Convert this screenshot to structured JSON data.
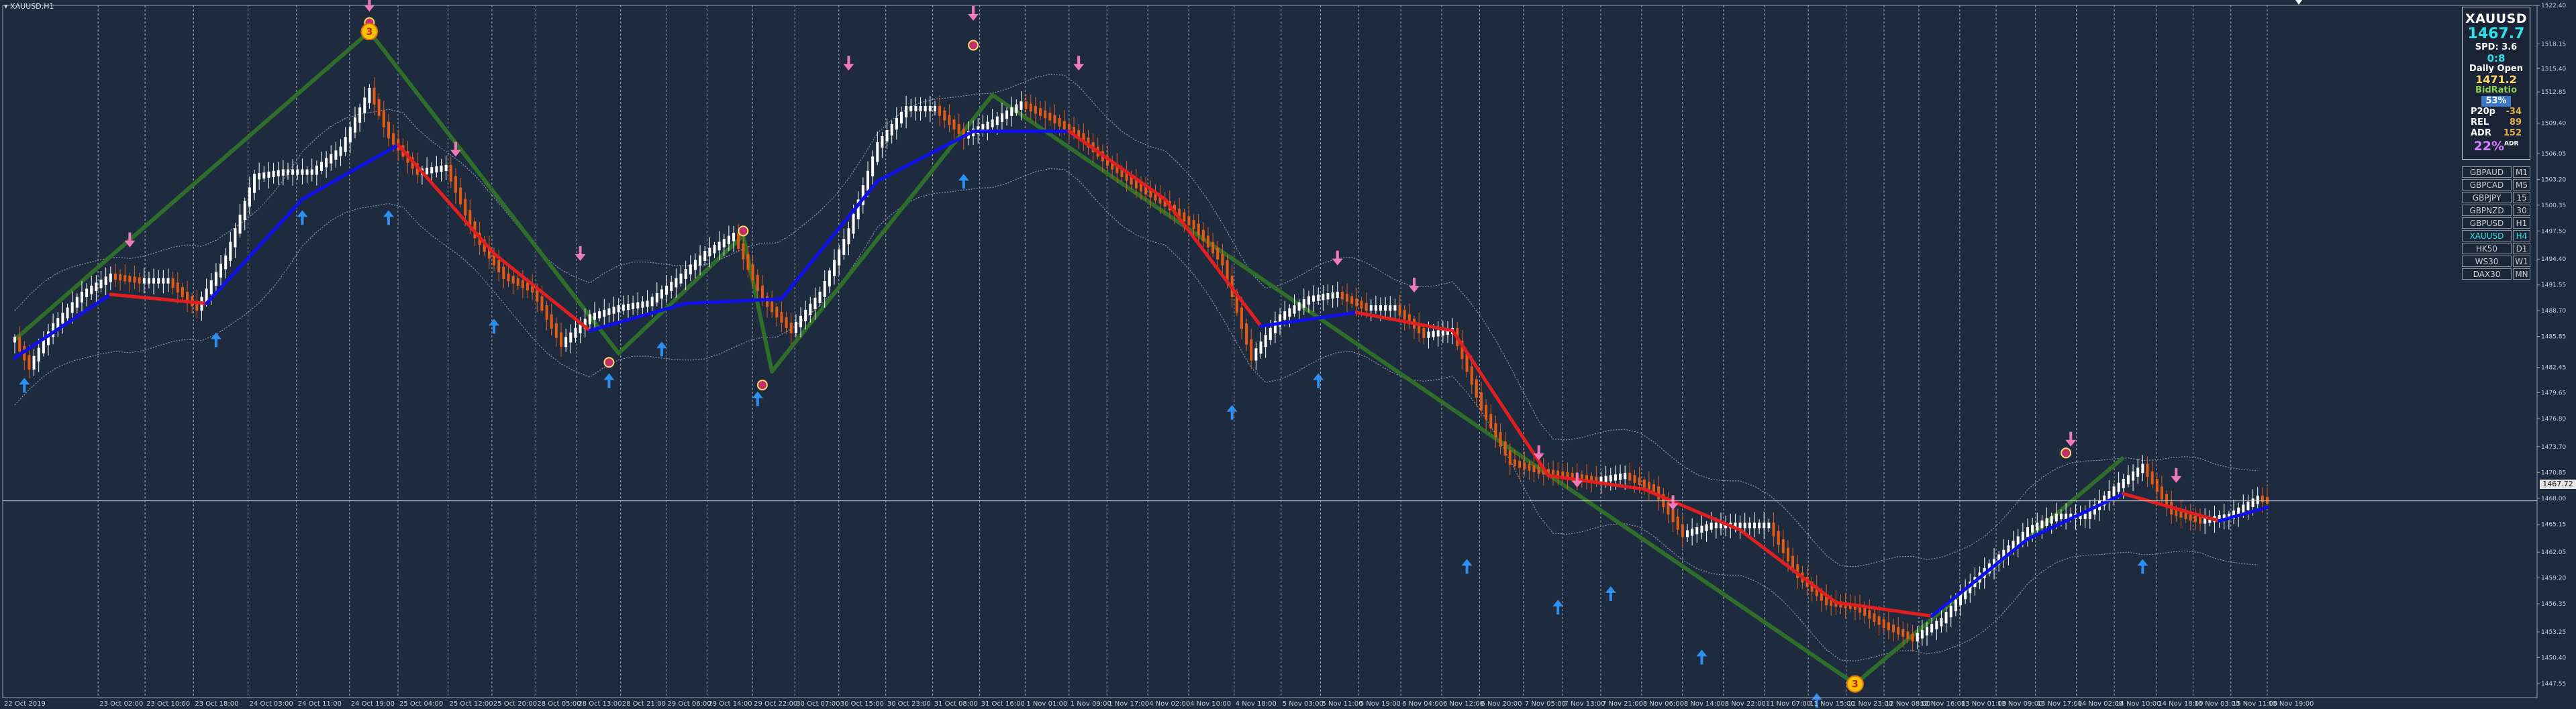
{
  "symbol_title": "XAUUSD,H1",
  "info_panel": {
    "symbol": "XAUUSD",
    "price": "1467.7",
    "spread": "SPD: 3.6",
    "counter": "0:8",
    "daily_open_label": "Daily Open",
    "daily_open_value": "1471.2",
    "bid_ratio_label": "BidRatio",
    "bid_ratio_value": "53%",
    "p20p_label": "P20p",
    "p20p_value": "-34",
    "rel_label": "REL",
    "rel_value": "89",
    "adr_label": "ADR",
    "adr_value": "152",
    "adr_pct": "22%",
    "adr_pct_tag": "ADR"
  },
  "pairs": [
    {
      "name": "GBPAUD",
      "tf": "M1",
      "active": false
    },
    {
      "name": "GBPCAD",
      "tf": "M5",
      "active": false
    },
    {
      "name": "GBPJPY",
      "tf": "15",
      "active": false
    },
    {
      "name": "GBPNZD",
      "tf": "30",
      "active": false
    },
    {
      "name": "GBPUSD",
      "tf": "H1",
      "active": false
    },
    {
      "name": "XAUUSD",
      "tf": "H4",
      "active": true
    },
    {
      "name": "HK50",
      "tf": "D1",
      "active": false
    },
    {
      "name": "WS30",
      "tf": "W1",
      "active": false
    },
    {
      "name": "DAX30",
      "tf": "MN",
      "active": false
    }
  ],
  "current_price_tag": "1467.72",
  "colors": {
    "background": "#1e2b3f",
    "bull_candle": "#ffffff",
    "bear_candle": "#e55a12",
    "ma_up": "#1010e8",
    "ma_down": "#e02020",
    "zigzag": "#2f6d2a",
    "band": "#8a96a8",
    "buy_arrow": "#2d8ff0",
    "sell_arrow": "#f07ab8",
    "grid": "#c7cfda"
  },
  "chart_data": {
    "type": "line",
    "ylim": [
      1446.0,
      1522.4
    ],
    "y_ticks": [
      "1522.40",
      "1518.15",
      "1515.40",
      "1512.85",
      "1509.40",
      "1506.05",
      "1503.20",
      "1500.35",
      "1497.50",
      "1494.40",
      "1491.55",
      "1488.70",
      "1485.85",
      "1482.45",
      "1479.65",
      "1476.80",
      "1473.70",
      "1470.85",
      "1468.00",
      "1465.15",
      "1462.05",
      "1459.20",
      "1456.35",
      "1453.25",
      "1450.40",
      "1447.55"
    ],
    "x_labels": [
      "22 Oct 2019",
      "23 Oct 02:00",
      "23 Oct 10:00",
      "23 Oct 18:00",
      "24 Oct 03:00",
      "24 Oct 11:00",
      "24 Oct 19:00",
      "25 Oct 04:00",
      "25 Oct 12:00",
      "25 Oct 20:00",
      "28 Oct 05:00",
      "28 Oct 13:00",
      "28 Oct 21:00",
      "29 Oct 06:00",
      "29 Oct 14:00",
      "29 Oct 22:00",
      "30 Oct 07:00",
      "30 Oct 15:00",
      "30 Oct 23:00",
      "31 Oct 08:00",
      "31 Oct 16:00",
      "1 Nov 01:00",
      "1 Nov 09:00",
      "1 Nov 17:00",
      "4 Nov 02:00",
      "4 Nov 10:00",
      "4 Nov 18:00",
      "5 Nov 03:00",
      "5 Nov 11:00",
      "5 Nov 19:00",
      "6 Nov 04:00",
      "6 Nov 12:00",
      "6 Nov 20:00",
      "7 Nov 05:00",
      "7 Nov 13:00",
      "7 Nov 21:00",
      "8 Nov 06:00",
      "8 Nov 14:00",
      "8 Nov 22:00",
      "11 Nov 07:00",
      "11 Nov 15:00",
      "11 Nov 23:00",
      "12 Nov 08:00",
      "12 Nov 16:00",
      "13 Nov 01:00",
      "13 Nov 09:00",
      "13 Nov 17:00",
      "14 Nov 02:00",
      "14 Nov 10:00",
      "14 Nov 18:00",
      "15 Nov 03:00",
      "15 Nov 11:00",
      "15 Nov 19:00"
    ],
    "vertical_grid_labels": [
      23,
      55,
      86,
      118,
      154,
      186,
      221,
      253,
      286,
      315,
      344,
      371,
      400,
      430,
      457,
      487,
      515,
      544,
      575,
      606,
      637,
      667,
      696,
      721,
      748,
      775,
      805,
      836,
      862,
      887,
      915,
      942,
      967,
      996,
      1022,
      1047,
      1074,
      1101,
      1128,
      1155,
      1184,
      1209,
      1234,
      1257,
      1284,
      1308,
      1334,
      1361,
      1386,
      1414,
      1438,
      1463,
      1487
    ],
    "price_path": [
      [
        0,
        1485.5
      ],
      [
        3,
        1482.5
      ],
      [
        8,
        1487.0
      ],
      [
        14,
        1490.5
      ],
      [
        20,
        1492.5
      ],
      [
        26,
        1492.0
      ],
      [
        32,
        1492.0
      ],
      [
        38,
        1489.0
      ],
      [
        44,
        1494.5
      ],
      [
        50,
        1503.5
      ],
      [
        56,
        1504.0
      ],
      [
        62,
        1504.0
      ],
      [
        68,
        1506.5
      ],
      [
        74,
        1513.0
      ],
      [
        78,
        1508.0
      ],
      [
        84,
        1504.0
      ],
      [
        90,
        1504.5
      ],
      [
        96,
        1497.0
      ],
      [
        102,
        1492.5
      ],
      [
        108,
        1491.0
      ],
      [
        114,
        1485.0
      ],
      [
        120,
        1488.0
      ],
      [
        126,
        1489.0
      ],
      [
        132,
        1489.5
      ],
      [
        138,
        1492.0
      ],
      [
        144,
        1495.0
      ],
      [
        150,
        1497.0
      ],
      [
        156,
        1490.0
      ],
      [
        162,
        1486.5
      ],
      [
        168,
        1490.5
      ],
      [
        174,
        1497.5
      ],
      [
        180,
        1507.0
      ],
      [
        186,
        1511.0
      ],
      [
        192,
        1511.0
      ],
      [
        198,
        1508.0
      ],
      [
        204,
        1509.5
      ],
      [
        210,
        1511.5
      ],
      [
        216,
        1510.0
      ],
      [
        222,
        1508.0
      ],
      [
        228,
        1505.0
      ],
      [
        234,
        1502.5
      ],
      [
        240,
        1500.5
      ],
      [
        246,
        1498.0
      ],
      [
        252,
        1494.0
      ],
      [
        258,
        1483.5
      ],
      [
        264,
        1488.0
      ],
      [
        270,
        1490.0
      ],
      [
        276,
        1490.5
      ],
      [
        282,
        1489.0
      ],
      [
        288,
        1489.0
      ],
      [
        294,
        1486.0
      ],
      [
        300,
        1486.5
      ],
      [
        306,
        1478.0
      ],
      [
        312,
        1472.0
      ],
      [
        318,
        1471.0
      ],
      [
        324,
        1470.5
      ],
      [
        330,
        1470.0
      ],
      [
        336,
        1470.5
      ],
      [
        342,
        1469.0
      ],
      [
        348,
        1464.0
      ],
      [
        354,
        1465.0
      ],
      [
        360,
        1465.0
      ],
      [
        366,
        1465.0
      ],
      [
        372,
        1459.5
      ],
      [
        378,
        1456.5
      ],
      [
        384,
        1456.0
      ],
      [
        390,
        1454.0
      ],
      [
        396,
        1452.5
      ],
      [
        402,
        1454.5
      ],
      [
        408,
        1458.5
      ],
      [
        414,
        1461.5
      ],
      [
        420,
        1464.5
      ],
      [
        426,
        1466.0
      ],
      [
        432,
        1466.0
      ],
      [
        438,
        1469.0
      ],
      [
        444,
        1471.5
      ],
      [
        450,
        1466.5
      ],
      [
        456,
        1465.5
      ],
      [
        462,
        1466.0
      ],
      [
        468,
        1468.0
      ],
      [
        470,
        1467.7
      ]
    ],
    "ma_path": [
      [
        0,
        1483.5
      ],
      [
        20,
        1490.5
      ],
      [
        40,
        1489.5
      ],
      [
        60,
        1501.0
      ],
      [
        80,
        1507.0
      ],
      [
        100,
        1495.0
      ],
      [
        120,
        1486.5
      ],
      [
        140,
        1489.5
      ],
      [
        160,
        1490.0
      ],
      [
        180,
        1503.0
      ],
      [
        200,
        1508.5
      ],
      [
        220,
        1508.5
      ],
      [
        240,
        1501.0
      ],
      [
        260,
        1487.0
      ],
      [
        280,
        1488.5
      ],
      [
        300,
        1486.5
      ],
      [
        320,
        1470.5
      ],
      [
        340,
        1469.0
      ],
      [
        360,
        1464.5
      ],
      [
        380,
        1456.5
      ],
      [
        400,
        1455.0
      ],
      [
        420,
        1463.5
      ],
      [
        440,
        1468.5
      ],
      [
        460,
        1465.5
      ],
      [
        470,
        1467.0
      ]
    ],
    "zigzag": [
      [
        0,
        1485.5
      ],
      [
        74,
        1519.5
      ],
      [
        126,
        1484.0
      ],
      [
        152,
        1497.0
      ],
      [
        158,
        1482.0
      ],
      [
        204,
        1512.5
      ],
      [
        384,
        1447.5
      ],
      [
        440,
        1472.5
      ]
    ],
    "zigzag_labels": [
      {
        "x": 74,
        "y": 1519.5,
        "text": "3"
      },
      {
        "x": 384,
        "y": 1447.5,
        "text": "3"
      }
    ],
    "sell_signals": [
      [
        24,
        1496.0
      ],
      [
        74,
        1522.0
      ],
      [
        92,
        1506.0
      ],
      [
        118,
        1494.5
      ],
      [
        174,
        1515.5
      ],
      [
        200,
        1521.0
      ],
      [
        222,
        1515.5
      ],
      [
        276,
        1494.0
      ],
      [
        292,
        1491.0
      ],
      [
        318,
        1472.5
      ],
      [
        326,
        1469.5
      ],
      [
        346,
        1467.0
      ],
      [
        429,
        1474.0
      ],
      [
        451,
        1470.0
      ]
    ],
    "buy_signals": [
      [
        2,
        1481.0
      ],
      [
        42,
        1486.0
      ],
      [
        60,
        1499.5
      ],
      [
        78,
        1499.5
      ],
      [
        100,
        1487.5
      ],
      [
        124,
        1481.5
      ],
      [
        135,
        1485.0
      ],
      [
        155,
        1479.5
      ],
      [
        198,
        1503.5
      ],
      [
        254,
        1478.0
      ],
      [
        272,
        1481.5
      ],
      [
        303,
        1461.0
      ],
      [
        322,
        1456.5
      ],
      [
        333,
        1458.0
      ],
      [
        352,
        1451.0
      ],
      [
        376,
        1446.2
      ],
      [
        444,
        1461.0
      ]
    ],
    "markers_circle": [
      [
        74,
        1520.5
      ],
      [
        124,
        1483.0
      ],
      [
        152,
        1497.5
      ],
      [
        156,
        1480.5
      ],
      [
        200,
        1518.0
      ],
      [
        428,
        1473.0
      ]
    ]
  }
}
